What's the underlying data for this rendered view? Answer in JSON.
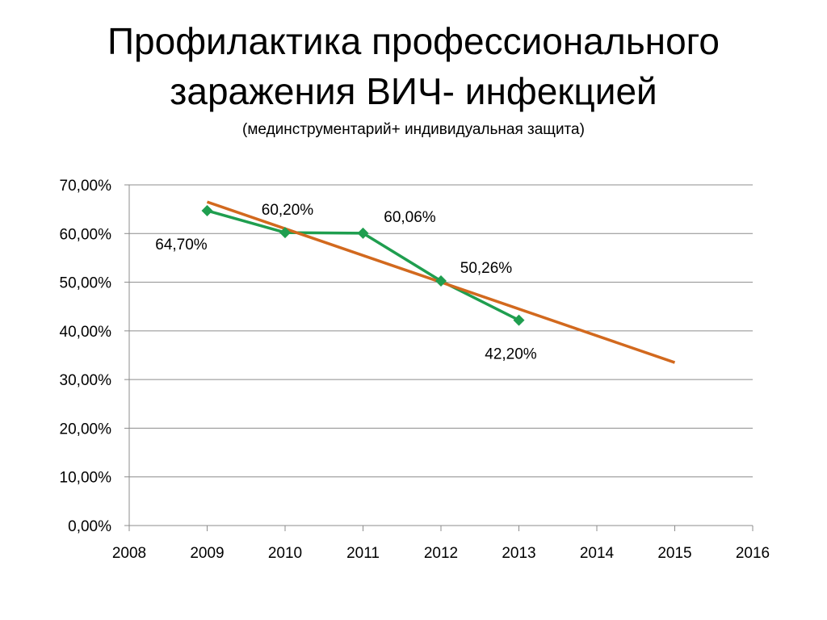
{
  "slide": {
    "title_line1": "Профилактика профессионального",
    "title_line2": "заражения ВИЧ- инфекцией",
    "subtitle": "(мединструментарий+ индивидуальная защита)"
  },
  "chart_data": {
    "type": "line",
    "title": "",
    "xlabel": "",
    "ylabel": "",
    "xlim": [
      2008,
      2016
    ],
    "ylim": [
      0,
      70
    ],
    "x_ticks": [
      "2008",
      "2009",
      "2010",
      "2011",
      "2012",
      "2013",
      "2014",
      "2015",
      "2016"
    ],
    "y_ticks": [
      "0,00%",
      "10,00%",
      "20,00%",
      "30,00%",
      "40,00%",
      "50,00%",
      "60,00%",
      "70,00%"
    ],
    "grid": true,
    "legend": "none",
    "series": [
      {
        "type": "line-markers",
        "color": "#1f9e4f",
        "marker": "diamond",
        "x": [
          2009,
          2010,
          2011,
          2012,
          2013
        ],
        "y": [
          64.7,
          60.2,
          60.06,
          50.26,
          42.2
        ],
        "labels": [
          "64,70%",
          "60,20%",
          "60,06%",
          "50,26%",
          "42,20%"
        ]
      },
      {
        "type": "trendline",
        "color": "#d2691e",
        "x": [
          2009,
          2015
        ],
        "y": [
          66.5,
          33.5
        ]
      }
    ]
  }
}
